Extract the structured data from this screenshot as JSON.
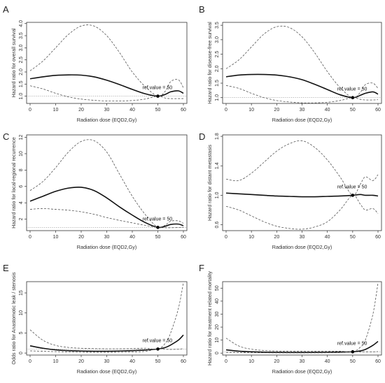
{
  "chart_data": [
    {
      "panel": "A",
      "type": "line",
      "xlabel": "Radiation dose (EQD2,Gy)",
      "ylabel": "Hazard ratio for overall survival",
      "xlim": [
        0,
        60
      ],
      "ylim": [
        0.7,
        4.05
      ],
      "xticks": [
        0,
        10,
        20,
        30,
        40,
        50,
        60
      ],
      "yticks": [
        1.0,
        1.5,
        2.0,
        2.5,
        3.0,
        3.5,
        4.0
      ],
      "ytick_labels": [
        "1.0",
        "1.5",
        "2.0",
        "2.5",
        "3.0",
        "3.5",
        "4.0"
      ],
      "reference_line": 1.0,
      "ref_point": {
        "x": 50,
        "y": 1.0
      },
      "annotation": "ref.value = 50",
      "x": [
        0,
        5,
        10,
        15,
        20,
        25,
        30,
        35,
        40,
        45,
        50,
        53,
        55,
        58,
        60
      ],
      "series": [
        {
          "style": "solid",
          "values": [
            1.72,
            1.8,
            1.86,
            1.88,
            1.87,
            1.8,
            1.66,
            1.48,
            1.28,
            1.1,
            1.0,
            1.08,
            1.18,
            1.22,
            1.12
          ]
        },
        {
          "style": "dashed",
          "values": [
            2.05,
            2.45,
            3.0,
            3.55,
            3.9,
            3.9,
            3.5,
            2.8,
            2.0,
            1.4,
            1.0,
            1.22,
            1.6,
            1.68,
            1.35
          ]
        },
        {
          "style": "dashed",
          "values": [
            1.43,
            1.3,
            1.12,
            0.97,
            0.88,
            0.83,
            0.8,
            0.8,
            0.82,
            0.88,
            1.0,
            0.92,
            0.9,
            0.9,
            0.9
          ]
        }
      ]
    },
    {
      "panel": "B",
      "type": "line",
      "xlabel": "Radiation dose (EQD2,Gy)",
      "ylabel": "Hazard ratio for disease-free survival",
      "xlim": [
        0,
        60
      ],
      "ylim": [
        0.8,
        3.6
      ],
      "xticks": [
        0,
        10,
        20,
        30,
        40,
        50,
        60
      ],
      "yticks": [
        1.0,
        1.5,
        2.0,
        2.5,
        3.0,
        3.5
      ],
      "ytick_labels": [
        "1.0",
        "1.5",
        "2.0",
        "2.5",
        "3.0",
        "3.5"
      ],
      "reference_line": 1.0,
      "ref_point": {
        "x": 50,
        "y": 1.0
      },
      "annotation": "ref.value = 50",
      "x": [
        0,
        5,
        10,
        15,
        20,
        25,
        30,
        35,
        40,
        45,
        50,
        53,
        55,
        58,
        60
      ],
      "series": [
        {
          "style": "solid",
          "values": [
            1.72,
            1.78,
            1.8,
            1.8,
            1.78,
            1.72,
            1.62,
            1.46,
            1.28,
            1.1,
            1.0,
            1.08,
            1.15,
            1.2,
            1.12
          ]
        },
        {
          "style": "dashed",
          "values": [
            2.0,
            2.3,
            2.75,
            3.2,
            3.45,
            3.42,
            3.1,
            2.55,
            1.9,
            1.35,
            1.0,
            1.18,
            1.45,
            1.5,
            1.32
          ]
        },
        {
          "style": "dashed",
          "values": [
            1.42,
            1.32,
            1.15,
            1.0,
            0.9,
            0.85,
            0.82,
            0.82,
            0.84,
            0.9,
            1.0,
            0.94,
            0.92,
            0.92,
            0.93
          ]
        }
      ]
    },
    {
      "panel": "C",
      "type": "line",
      "xlabel": "Radiation dose (EQD2,Gy)",
      "ylabel": "Hazard ratio for local-regional recurrence",
      "xlim": [
        0,
        60
      ],
      "ylim": [
        0.6,
        12.3
      ],
      "xticks": [
        0,
        10,
        20,
        30,
        40,
        50,
        60
      ],
      "yticks": [
        2,
        4,
        6,
        8,
        10,
        12
      ],
      "ytick_labels": [
        "2",
        "4",
        "6",
        "8",
        "10",
        "12"
      ],
      "reference_line": 1.0,
      "ref_point": {
        "x": 50,
        "y": 1.0
      },
      "annotation": "ref.value = 50",
      "x": [
        0,
        5,
        10,
        15,
        20,
        25,
        30,
        35,
        40,
        45,
        50,
        53,
        55,
        58,
        60
      ],
      "series": [
        {
          "style": "solid",
          "values": [
            4.2,
            4.8,
            5.4,
            5.8,
            5.9,
            5.5,
            4.6,
            3.5,
            2.5,
            1.6,
            1.0,
            1.15,
            1.35,
            1.4,
            1.2
          ]
        },
        {
          "style": "dashed",
          "values": [
            5.5,
            6.6,
            8.3,
            10.2,
            11.5,
            11.6,
            10.2,
            7.5,
            4.8,
            2.6,
            1.0,
            1.3,
            1.75,
            1.8,
            1.5
          ]
        },
        {
          "style": "dashed",
          "values": [
            3.2,
            3.3,
            3.2,
            3.1,
            2.9,
            2.6,
            2.2,
            1.85,
            1.55,
            1.25,
            1.0,
            0.95,
            0.95,
            0.98,
            1.0
          ]
        }
      ]
    },
    {
      "panel": "D",
      "type": "line",
      "xlabel": "Radiation dose (EQD2,Gy)",
      "ylabel": "Hazard ratio for distant metastasis",
      "xlim": [
        0,
        60
      ],
      "ylim": [
        0.52,
        1.82
      ],
      "xticks": [
        0,
        10,
        20,
        30,
        40,
        50,
        60
      ],
      "yticks": [
        0.6,
        1.0,
        1.4,
        1.8
      ],
      "ytick_labels": [
        "0.6",
        "1.0",
        "1.4",
        "1.8"
      ],
      "ref_point": {
        "x": 50,
        "y": 1.0
      },
      "annotation": "ref.value = 50",
      "x": [
        0,
        5,
        10,
        15,
        20,
        25,
        30,
        35,
        40,
        45,
        50,
        53,
        55,
        58,
        60
      ],
      "series": [
        {
          "style": "solid",
          "values": [
            1.03,
            1.02,
            1.01,
            1.0,
            0.99,
            0.985,
            0.98,
            0.98,
            0.985,
            0.99,
            1.0,
            1.01,
            1.0,
            1.0,
            0.99
          ]
        },
        {
          "style": "dashed",
          "values": [
            1.22,
            1.2,
            1.3,
            1.45,
            1.6,
            1.7,
            1.74,
            1.65,
            1.48,
            1.25,
            1.0,
            1.15,
            1.25,
            1.2,
            1.28
          ]
        },
        {
          "style": "dashed",
          "values": [
            0.85,
            0.8,
            0.72,
            0.64,
            0.58,
            0.55,
            0.54,
            0.57,
            0.64,
            0.8,
            1.0,
            0.88,
            0.8,
            0.82,
            0.75
          ]
        }
      ]
    },
    {
      "panel": "E",
      "type": "line",
      "xlabel": "Radiation dose (EQD2,Gy)",
      "ylabel": "Odds ratio for Anastomotic leak / stenosis",
      "xlim": [
        0,
        60
      ],
      "ylim": [
        -0.5,
        17.8
      ],
      "xticks": [
        0,
        10,
        20,
        30,
        40,
        50,
        60
      ],
      "yticks": [
        0,
        5,
        10,
        15
      ],
      "ytick_labels": [
        "0",
        "5",
        "10",
        "15"
      ],
      "reference_line": 1.0,
      "ref_point": {
        "x": 50,
        "y": 1.0
      },
      "annotation": "ref.value = 50",
      "x": [
        0,
        5,
        10,
        15,
        20,
        25,
        30,
        35,
        40,
        45,
        50,
        53,
        55,
        58,
        60
      ],
      "series": [
        {
          "style": "solid",
          "values": [
            1.8,
            1.2,
            0.8,
            0.6,
            0.5,
            0.45,
            0.45,
            0.5,
            0.6,
            0.75,
            1.0,
            1.4,
            2.0,
            3.2,
            4.5
          ]
        },
        {
          "style": "dashed",
          "values": [
            5.8,
            3.2,
            1.9,
            1.4,
            1.2,
            1.1,
            1.05,
            1.05,
            1.1,
            1.2,
            1.0,
            2.5,
            5.0,
            11.0,
            17.5
          ]
        },
        {
          "style": "dashed",
          "values": [
            0.55,
            0.45,
            0.35,
            0.28,
            0.22,
            0.2,
            0.2,
            0.22,
            0.28,
            0.42,
            1.0,
            0.95,
            0.9,
            0.95,
            1.1
          ]
        }
      ]
    },
    {
      "panel": "F",
      "type": "line",
      "xlabel": "Radiation dose (EQD2,Gy)",
      "ylabel": "Hazard ratio for treatment related mortality",
      "xlim": [
        0,
        60
      ],
      "ylim": [
        -1.5,
        55
      ],
      "xticks": [
        0,
        10,
        20,
        30,
        40,
        50,
        60
      ],
      "yticks": [
        0,
        10,
        20,
        30,
        40,
        50
      ],
      "ytick_labels": [
        "0",
        "10",
        "20",
        "30",
        "40",
        "50"
      ],
      "reference_line": 1.0,
      "ref_point": {
        "x": 50,
        "y": 1.0
      },
      "annotation": "ref.value = 50",
      "x": [
        0,
        5,
        10,
        15,
        20,
        25,
        30,
        35,
        40,
        45,
        50,
        53,
        55,
        58,
        60
      ],
      "series": [
        {
          "style": "solid",
          "values": [
            2.5,
            1.5,
            1.0,
            0.7,
            0.55,
            0.5,
            0.5,
            0.55,
            0.65,
            0.8,
            1.0,
            1.7,
            2.8,
            6.0,
            9.0
          ]
        },
        {
          "style": "dashed",
          "values": [
            11.5,
            5.5,
            3.0,
            2.0,
            1.6,
            1.4,
            1.35,
            1.35,
            1.4,
            1.5,
            1.0,
            4.5,
            10.0,
            30.0,
            54.0
          ]
        },
        {
          "style": "dashed",
          "values": [
            0.6,
            0.4,
            0.3,
            0.25,
            0.2,
            0.18,
            0.18,
            0.2,
            0.25,
            0.4,
            1.0,
            0.95,
            0.9,
            0.95,
            1.2
          ]
        }
      ]
    }
  ]
}
